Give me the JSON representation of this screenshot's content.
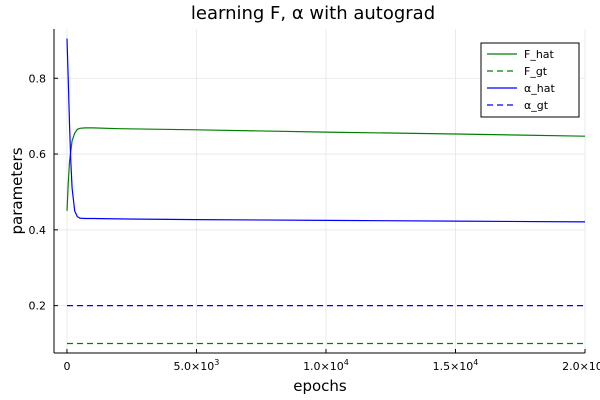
{
  "chart_data": {
    "type": "line",
    "title": "learning F, α with autograd",
    "xlabel": "epochs",
    "ylabel": "parameters",
    "xlim": [
      -500,
      20000
    ],
    "ylim": [
      0.075,
      0.93
    ],
    "grid": true,
    "legend_position": "top-right",
    "x_ticks": [
      {
        "value": 0,
        "base": "0",
        "exp": ""
      },
      {
        "value": 5000,
        "base": "5.0×10",
        "exp": "3"
      },
      {
        "value": 10000,
        "base": "1.0×10",
        "exp": "4"
      },
      {
        "value": 15000,
        "base": "1.5×10",
        "exp": "4"
      },
      {
        "value": 20000,
        "base": "2.0×10",
        "exp": "4"
      }
    ],
    "y_ticks": [
      {
        "value": 0.2,
        "label": "0.2"
      },
      {
        "value": 0.4,
        "label": "0.4"
      },
      {
        "value": 0.6,
        "label": "0.6"
      },
      {
        "value": 0.8,
        "label": "0.8"
      }
    ],
    "series": [
      {
        "name": "F_hat",
        "color": "#008000",
        "dash": "solid",
        "x": [
          0,
          50,
          100,
          200,
          300,
          400,
          500,
          700,
          1000,
          2000,
          5000,
          10000,
          15000,
          20000
        ],
        "y": [
          0.45,
          0.52,
          0.58,
          0.635,
          0.655,
          0.665,
          0.668,
          0.669,
          0.669,
          0.667,
          0.664,
          0.658,
          0.653,
          0.647
        ]
      },
      {
        "name": "F_gt",
        "color": "#008000",
        "dash": "dashed",
        "x": [
          0,
          20000
        ],
        "y": [
          0.1,
          0.1
        ]
      },
      {
        "name": "α_hat",
        "color": "#0000ff",
        "dash": "solid",
        "x": [
          0,
          50,
          100,
          150,
          200,
          300,
          400,
          500,
          700,
          1000,
          2000,
          5000,
          10000,
          15000,
          20000
        ],
        "y": [
          0.905,
          0.8,
          0.68,
          0.58,
          0.51,
          0.45,
          0.435,
          0.431,
          0.43,
          0.43,
          0.429,
          0.427,
          0.425,
          0.423,
          0.421
        ]
      },
      {
        "name": "α_gt",
        "color": "#0000ff",
        "dash": "dashed",
        "x": [
          0,
          20000
        ],
        "y": [
          0.2,
          0.2
        ]
      }
    ]
  }
}
